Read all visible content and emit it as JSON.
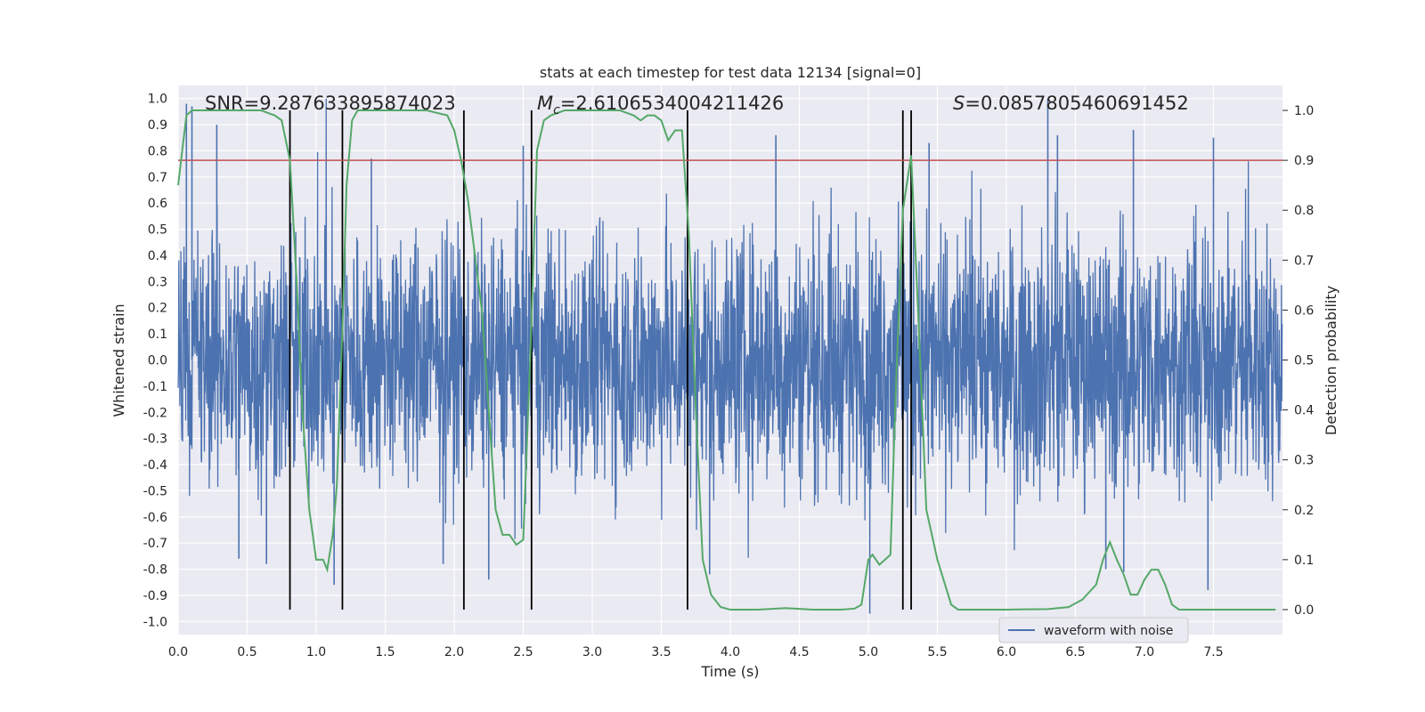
{
  "chart_data": {
    "type": "line",
    "title": "stats at each timestep for test data 12134 [signal=0]",
    "xlabel": "Time (s)",
    "ylabel_left": "Whitened strain",
    "ylabel_right": "Detection probability",
    "xlim": [
      0.0,
      8.0
    ],
    "ylim_left": [
      -1.05,
      1.05
    ],
    "ylim_right": [
      -0.05,
      1.05
    ],
    "x_ticks": [
      0.0,
      0.5,
      1.0,
      1.5,
      2.0,
      2.5,
      3.0,
      3.5,
      4.0,
      4.5,
      5.0,
      5.5,
      6.0,
      6.5,
      7.0,
      7.5
    ],
    "x_tick_labels": [
      "0.0",
      "0.5",
      "1.0",
      "1.5",
      "2.0",
      "2.5",
      "3.0",
      "3.5",
      "4.0",
      "4.5",
      "5.0",
      "5.5",
      "6.0",
      "6.5",
      "7.0",
      "7.5"
    ],
    "y_left_ticks": [
      1.0,
      0.9,
      0.8,
      0.7,
      0.6,
      0.5,
      0.4,
      0.3,
      0.2,
      0.1,
      0.0,
      -0.1,
      -0.2,
      -0.3,
      -0.4,
      -0.5,
      -0.6,
      -0.7,
      -0.8,
      -0.9,
      -1.0
    ],
    "y_left_tick_labels": [
      "1.0",
      "0.9",
      "0.8",
      "0.7",
      "0.6",
      "0.5",
      "0.4",
      "0.3",
      "0.2",
      "0.1",
      "0.0",
      "-0.1",
      "-0.2",
      "-0.3",
      "-0.4",
      "-0.5",
      "-0.6",
      "-0.7",
      "-0.8",
      "-0.9",
      "-1.0"
    ],
    "y_right_ticks": [
      1.0,
      0.9,
      0.8,
      0.7,
      0.6,
      0.5,
      0.4,
      0.3,
      0.2,
      0.1,
      0.0
    ],
    "y_right_tick_labels": [
      "1.0",
      "0.9",
      "0.8",
      "0.7",
      "0.6",
      "0.5",
      "0.4",
      "0.3",
      "0.2",
      "0.1",
      "0.0"
    ],
    "grid": true,
    "legend": {
      "placement": "bottom-right",
      "entries": [
        {
          "name": "waveform with noise",
          "color": "#4c72b0"
        }
      ]
    },
    "annotations": [
      {
        "prefix": "SNR",
        "text": "=9.287633895874023"
      },
      {
        "prefix": "M",
        "sub": "c",
        "text": "=2.6106534004211426"
      },
      {
        "prefix": "S",
        "text": "=0.0857805460691452"
      }
    ],
    "threshold_line": {
      "y": 0.9,
      "axis": "right",
      "color": "#c44e52"
    },
    "vertical_lines_x": [
      0.81,
      1.19,
      2.07,
      2.56,
      3.69,
      5.25,
      5.31
    ],
    "waveform": {
      "name": "waveform with noise",
      "color": "#4c72b0",
      "duration_s": 8.0,
      "typical_amplitude": 0.3,
      "peaks": [
        {
          "x": 0.06,
          "y": 0.98
        },
        {
          "x": 0.1,
          "y": 0.97
        },
        {
          "x": 0.28,
          "y": 0.9
        },
        {
          "x": 1.4,
          "y": 0.77
        },
        {
          "x": 2.5,
          "y": 0.82
        },
        {
          "x": 4.33,
          "y": 0.86
        },
        {
          "x": 5.44,
          "y": 0.83
        },
        {
          "x": 6.3,
          "y": 1.0
        },
        {
          "x": 6.37,
          "y": 0.86
        },
        {
          "x": 6.92,
          "y": 0.88
        },
        {
          "x": 7.5,
          "y": 0.85
        },
        {
          "x": 0.44,
          "y": -0.76
        },
        {
          "x": 0.64,
          "y": -0.78
        },
        {
          "x": 1.13,
          "y": -0.86
        },
        {
          "x": 1.92,
          "y": -0.78
        },
        {
          "x": 2.25,
          "y": -0.84
        },
        {
          "x": 3.85,
          "y": -0.82
        },
        {
          "x": 5.01,
          "y": -0.97
        },
        {
          "x": 6.72,
          "y": -0.8
        },
        {
          "x": 6.85,
          "y": -0.81
        },
        {
          "x": 7.46,
          "y": -0.88
        }
      ]
    },
    "detection_probability": {
      "color": "#55a868",
      "x": [
        0.0,
        0.06,
        0.1,
        0.2,
        0.4,
        0.6,
        0.7,
        0.75,
        0.81,
        0.86,
        0.9,
        0.95,
        1.0,
        1.05,
        1.08,
        1.12,
        1.15,
        1.19,
        1.22,
        1.26,
        1.3,
        1.4,
        1.6,
        1.8,
        1.95,
        2.0,
        2.05,
        2.1,
        2.2,
        2.3,
        2.35,
        2.4,
        2.45,
        2.5,
        2.55,
        2.6,
        2.65,
        2.7,
        2.8,
        3.0,
        3.2,
        3.3,
        3.35,
        3.4,
        3.45,
        3.5,
        3.55,
        3.6,
        3.65,
        3.7,
        3.75,
        3.8,
        3.86,
        3.93,
        4.0,
        4.2,
        4.4,
        4.6,
        4.8,
        4.9,
        4.95,
        5.0,
        5.03,
        5.08,
        5.12,
        5.16,
        5.2,
        5.25,
        5.31,
        5.36,
        5.42,
        5.5,
        5.6,
        5.65,
        5.7,
        6.0,
        6.3,
        6.45,
        6.55,
        6.65,
        6.7,
        6.75,
        6.8,
        6.85,
        6.9,
        6.95,
        7.0,
        7.05,
        7.1,
        7.15,
        7.2,
        7.25,
        7.3,
        7.4,
        7.6,
        7.8,
        7.95
      ],
      "y": [
        0.85,
        0.99,
        1.0,
        1.0,
        1.0,
        1.0,
        0.99,
        0.98,
        0.9,
        0.65,
        0.4,
        0.2,
        0.1,
        0.1,
        0.08,
        0.15,
        0.25,
        0.56,
        0.85,
        0.98,
        1.0,
        1.0,
        1.0,
        1.0,
        0.99,
        0.96,
        0.9,
        0.82,
        0.6,
        0.2,
        0.15,
        0.15,
        0.13,
        0.14,
        0.5,
        0.92,
        0.98,
        0.99,
        1.0,
        1.0,
        1.0,
        0.99,
        0.98,
        0.99,
        0.99,
        0.98,
        0.94,
        0.96,
        0.96,
        0.75,
        0.4,
        0.1,
        0.03,
        0.005,
        0.0,
        0.0,
        0.003,
        0.0,
        0.0,
        0.002,
        0.01,
        0.1,
        0.11,
        0.09,
        0.1,
        0.11,
        0.45,
        0.8,
        0.91,
        0.6,
        0.2,
        0.1,
        0.01,
        0.0,
        0.0,
        0.0,
        0.001,
        0.005,
        0.02,
        0.05,
        0.1,
        0.135,
        0.1,
        0.07,
        0.03,
        0.03,
        0.06,
        0.08,
        0.08,
        0.05,
        0.01,
        0.0,
        0.0,
        0.0,
        0.0,
        0.0,
        0.0
      ]
    }
  }
}
